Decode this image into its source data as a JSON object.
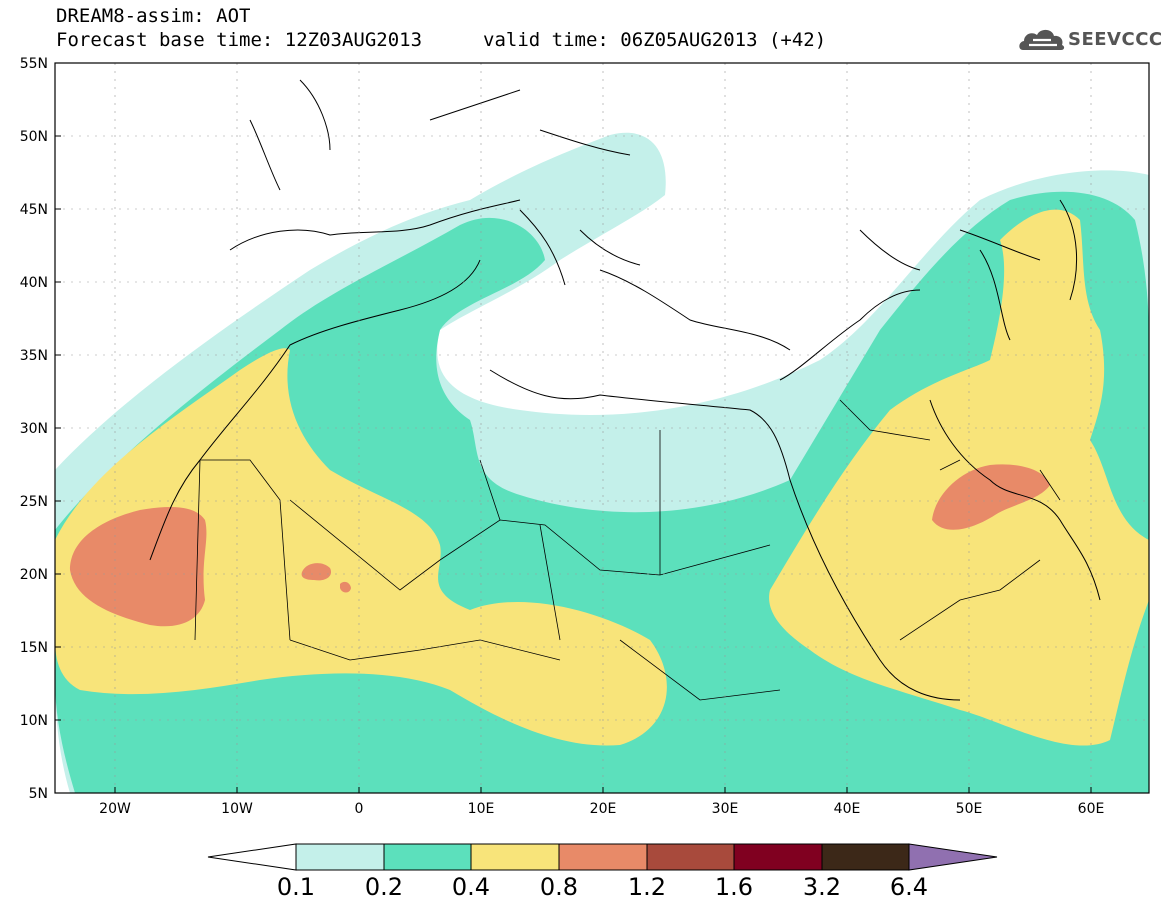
{
  "header": {
    "title": "DREAM8-assim: AOT",
    "base_time": "Forecast base time: 12Z03AUG2013",
    "valid_time": "valid time: 06Z05AUG2013 (+42)",
    "logo_text": "SEEVCCC"
  },
  "map": {
    "lon_range": [
      -25,
      65
    ],
    "lat_range": [
      5,
      55
    ],
    "lat_ticks": [
      "55N",
      "50N",
      "45N",
      "40N",
      "35N",
      "30N",
      "25N",
      "20N",
      "15N",
      "10N",
      "5N"
    ],
    "lon_ticks": [
      "20W",
      "10W",
      "0",
      "10E",
      "20E",
      "30E",
      "40E",
      "50E",
      "60E"
    ],
    "variable": "AOT"
  },
  "colorbar": {
    "labels": [
      "0.1",
      "0.2",
      "0.4",
      "0.8",
      "1.2",
      "1.6",
      "3.2",
      "6.4"
    ],
    "colors": [
      "#ffffff",
      "#c4f0ea",
      "#5ce0bc",
      "#f8e47a",
      "#e88a68",
      "#a84a3c",
      "#800020",
      "#3c2818",
      "#9070b0"
    ]
  }
}
